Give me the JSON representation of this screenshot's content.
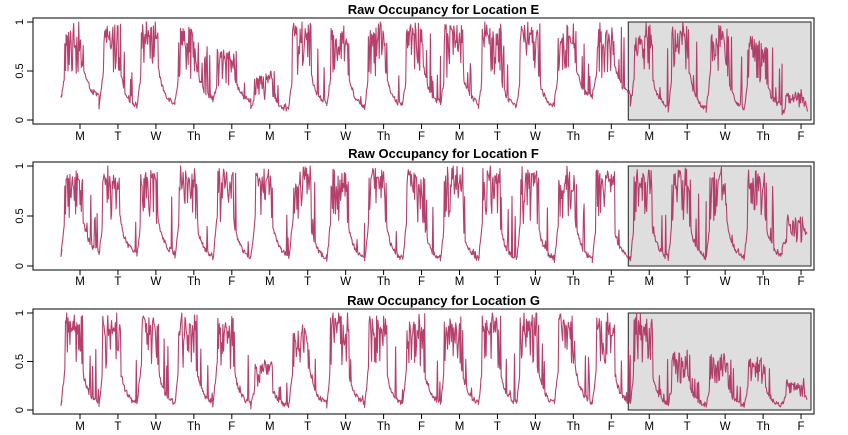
{
  "colors": {
    "series": "#b03060",
    "highlight_fill": "#dedede",
    "frame": "#000000"
  },
  "chart_data": [
    {
      "type": "line",
      "title": "Raw Occupancy for Location E",
      "xlabel": "",
      "ylabel": "",
      "ylim": [
        0,
        1
      ],
      "yticks": [
        "0",
        "0.5",
        "1"
      ],
      "x_ticks": [
        "M",
        "T",
        "W",
        "Th",
        "F",
        "M",
        "T",
        "W",
        "Th",
        "F",
        "M",
        "T",
        "W",
        "Th",
        "F",
        "M",
        "T",
        "W",
        "Th",
        "F"
      ],
      "highlight_days": [
        15,
        20
      ],
      "grid": false,
      "legend": "none",
      "series": [
        {
          "day_peaks": [
            1.0,
            1.0,
            1.0,
            0.95,
            0.75,
            0.5,
            1.0,
            1.0,
            1.0,
            1.0,
            1.0,
            1.0,
            1.0,
            1.0,
            1.0,
            0.98,
            1.0,
            1.0,
            0.85,
            0.3
          ],
          "night_levels": [
            0.22,
            0.12,
            0.15,
            0.2,
            0.18,
            0.1,
            0.15,
            0.12,
            0.12,
            0.15,
            0.15,
            0.12,
            0.12,
            0.2,
            0.25,
            0.12,
            0.1,
            0.1,
            0.12,
            0.05
          ]
        }
      ]
    },
    {
      "type": "line",
      "title": "Raw Occupancy for Location F",
      "xlabel": "",
      "ylabel": "",
      "ylim": [
        0,
        1
      ],
      "yticks": [
        "0",
        "0.5",
        "1"
      ],
      "x_ticks": [
        "M",
        "T",
        "W",
        "Th",
        "F",
        "M",
        "T",
        "W",
        "Th",
        "F",
        "M",
        "T",
        "W",
        "Th",
        "F",
        "M",
        "T",
        "W",
        "Th",
        "F"
      ],
      "highlight_days": [
        15,
        20
      ],
      "grid": false,
      "legend": "none",
      "series": [
        {
          "day_peaks": [
            1.0,
            1.0,
            1.0,
            1.0,
            1.0,
            1.0,
            1.0,
            1.0,
            1.0,
            1.0,
            1.0,
            1.0,
            1.0,
            1.0,
            1.0,
            1.0,
            1.0,
            1.0,
            1.0,
            0.5
          ],
          "night_levels": [
            0.12,
            0.1,
            0.1,
            0.08,
            0.06,
            0.08,
            0.06,
            0.05,
            0.05,
            0.05,
            0.05,
            0.05,
            0.05,
            0.05,
            0.05,
            0.06,
            0.06,
            0.06,
            0.08,
            0.2
          ]
        }
      ]
    },
    {
      "type": "line",
      "title": "Raw Occupancy for Location G",
      "xlabel": "",
      "ylabel": "",
      "ylim": [
        0,
        1
      ],
      "yticks": [
        "0",
        "0.5",
        "1"
      ],
      "x_ticks": [
        "M",
        "T",
        "W",
        "Th",
        "F",
        "M",
        "T",
        "W",
        "Th",
        "F",
        "M",
        "T",
        "W",
        "Th",
        "F",
        "M",
        "T",
        "W",
        "Th",
        "F"
      ],
      "highlight_days": [
        15,
        20
      ],
      "grid": false,
      "legend": "none",
      "series": [
        {
          "day_peaks": [
            1.0,
            1.0,
            1.0,
            1.0,
            1.0,
            0.5,
            0.9,
            1.0,
            1.0,
            1.0,
            1.0,
            1.0,
            1.0,
            1.0,
            1.0,
            1.0,
            0.6,
            0.6,
            0.55,
            0.3
          ],
          "night_levels": [
            0.05,
            0.04,
            0.05,
            0.05,
            0.04,
            0.04,
            0.05,
            0.05,
            0.05,
            0.05,
            0.05,
            0.05,
            0.05,
            0.05,
            0.05,
            0.04,
            0.04,
            0.04,
            0.04,
            0.05
          ]
        }
      ]
    }
  ]
}
